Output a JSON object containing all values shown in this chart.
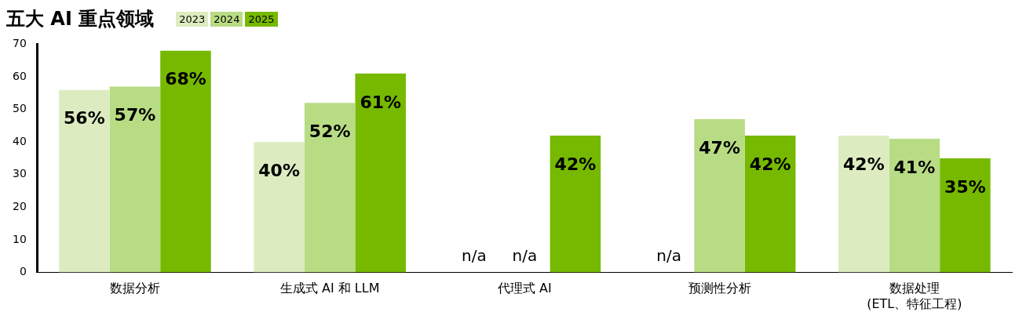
{
  "chart_data": {
    "type": "bar",
    "title": "五大 AI 重点领域",
    "categories": [
      "数据分析",
      "生成式 AI 和 LLM",
      "代理式 AI",
      "预测性分析",
      "数据处理\n(ETL、特征工程)"
    ],
    "series": [
      {
        "name": "2023",
        "color": "#dcecc0",
        "values": [
          56,
          40,
          null,
          null,
          42
        ],
        "value_labels": [
          "56%",
          "40%",
          "n/a",
          "n/a",
          "42%"
        ]
      },
      {
        "name": "2024",
        "color": "#b8dc84",
        "values": [
          57,
          52,
          null,
          47,
          41
        ],
        "value_labels": [
          "57%",
          "52%",
          "n/a",
          "47%",
          "41%"
        ]
      },
      {
        "name": "2025",
        "color": "#76b900",
        "values": [
          68,
          61,
          42,
          42,
          35
        ],
        "value_labels": [
          "68%",
          "61%",
          "42%",
          "42%",
          "35%"
        ]
      }
    ],
    "ylim": [
      0,
      70
    ],
    "yticks": [
      0,
      10,
      20,
      30,
      40,
      50,
      60,
      70
    ],
    "grid": false,
    "legend": "top left"
  }
}
